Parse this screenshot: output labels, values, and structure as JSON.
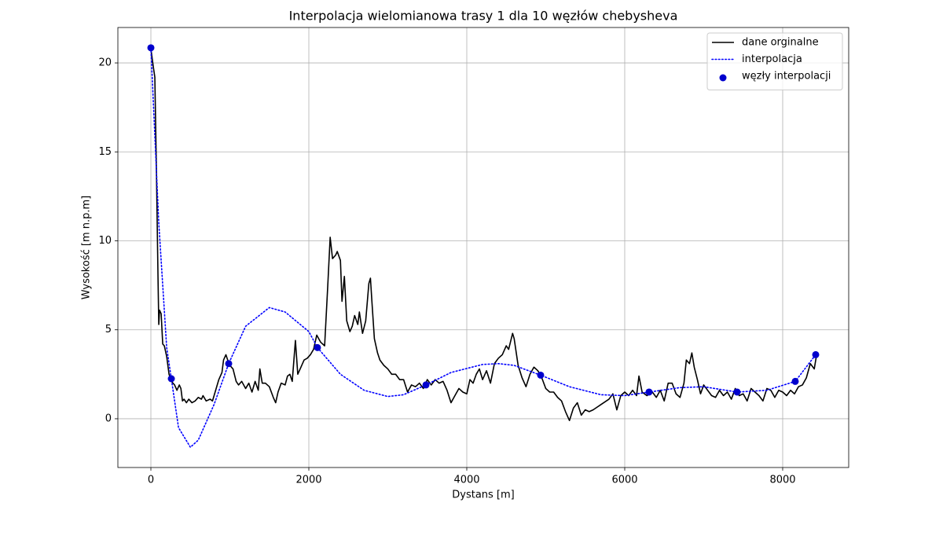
{
  "chart_data": {
    "type": "line",
    "title": "Interpolacja wielomianowa trasy 1 dla 10 węzłów chebysheva",
    "xlabel": "Dystans [m]",
    "ylabel": "Wysokość [m n.p.m]",
    "xlim": [
      -418,
      8836
    ],
    "ylim": [
      -2.74,
      21.99
    ],
    "xticks": [
      0,
      2000,
      4000,
      6000,
      8000
    ],
    "yticks": [
      0,
      5,
      10,
      15,
      20
    ],
    "grid": true,
    "legend": "upper right",
    "series": [
      {
        "name": "dane orginalne",
        "type": "line",
        "style": "solid",
        "color": "#000000",
        "x": [
          0,
          30,
          50,
          70,
          90,
          100,
          110,
          130,
          150,
          170,
          200,
          230,
          260,
          300,
          330,
          360,
          380,
          400,
          420,
          450,
          480,
          520,
          560,
          600,
          640,
          660,
          700,
          750,
          780,
          820,
          860,
          900,
          920,
          950,
          980,
          1000,
          1040,
          1080,
          1110,
          1150,
          1200,
          1240,
          1280,
          1320,
          1360,
          1380,
          1410,
          1450,
          1500,
          1550,
          1580,
          1610,
          1650,
          1700,
          1730,
          1760,
          1790,
          1830,
          1860,
          1900,
          1940,
          1980,
          2020,
          2060,
          2100,
          2150,
          2200,
          2240,
          2270,
          2300,
          2340,
          2360,
          2400,
          2420,
          2450,
          2480,
          2520,
          2550,
          2580,
          2620,
          2640,
          2680,
          2720,
          2760,
          2780,
          2800,
          2830,
          2870,
          2900,
          2950,
          3000,
          3050,
          3100,
          3150,
          3200,
          3250,
          3300,
          3350,
          3400,
          3450,
          3500,
          3550,
          3600,
          3650,
          3700,
          3750,
          3800,
          3850,
          3900,
          3950,
          4000,
          4040,
          4080,
          4120,
          4160,
          4200,
          4250,
          4300,
          4350,
          4400,
          4450,
          4500,
          4530,
          4580,
          4600,
          4650,
          4700,
          4750,
          4800,
          4850,
          4900,
          4950,
          5000,
          5050,
          5100,
          5150,
          5200,
          5250,
          5300,
          5350,
          5400,
          5450,
          5500,
          5550,
          5600,
          5700,
          5800,
          5850,
          5900,
          5950,
          6000,
          6050,
          6100,
          6150,
          6180,
          6220,
          6280,
          6350,
          6400,
          6450,
          6500,
          6550,
          6600,
          6650,
          6700,
          6750,
          6780,
          6820,
          6850,
          6880,
          6920,
          6960,
          7000,
          7050,
          7100,
          7150,
          7200,
          7250,
          7300,
          7350,
          7400,
          7450,
          7500,
          7550,
          7600,
          7650,
          7700,
          7750,
          7800,
          7850,
          7900,
          7950,
          8000,
          8050,
          8100,
          8150,
          8200,
          8250,
          8300,
          8350,
          8400,
          8430
        ],
        "values": [
          20.8,
          19.8,
          19.2,
          14,
          8,
          5.3,
          6.1,
          5.9,
          4.2,
          4.1,
          3.5,
          2.5,
          2.1,
          1.9,
          1.6,
          1.9,
          1.7,
          1.0,
          1.1,
          0.9,
          1.1,
          0.9,
          1.0,
          1.2,
          1.1,
          1.3,
          1.0,
          1.1,
          1.0,
          1.6,
          2.2,
          2.6,
          3.3,
          3.6,
          3.2,
          3.0,
          2.8,
          2.1,
          1.9,
          2.1,
          1.7,
          2.0,
          1.5,
          2.1,
          1.6,
          2.8,
          2.0,
          2.0,
          1.8,
          1.2,
          0.9,
          1.5,
          2.0,
          1.9,
          2.4,
          2.5,
          2.1,
          4.4,
          2.5,
          2.9,
          3.3,
          3.4,
          3.6,
          3.9,
          4.7,
          4.3,
          4.1,
          7.5,
          10.2,
          9.0,
          9.2,
          9.4,
          8.9,
          6.6,
          8.0,
          5.5,
          4.9,
          5.2,
          5.8,
          5.3,
          6.0,
          4.8,
          5.5,
          7.6,
          7.9,
          6.5,
          4.5,
          3.7,
          3.3,
          3.0,
          2.8,
          2.5,
          2.5,
          2.2,
          2.2,
          1.5,
          1.9,
          1.8,
          2.0,
          1.7,
          2.2,
          1.9,
          2.2,
          2.0,
          2.1,
          1.6,
          0.9,
          1.3,
          1.7,
          1.5,
          1.4,
          2.2,
          2.0,
          2.5,
          2.8,
          2.2,
          2.7,
          2.0,
          3.1,
          3.4,
          3.6,
          4.1,
          3.9,
          4.8,
          4.5,
          3.0,
          2.3,
          1.8,
          2.5,
          2.9,
          2.7,
          2.3,
          1.7,
          1.5,
          1.5,
          1.2,
          1.0,
          0.4,
          -0.1,
          0.6,
          0.9,
          0.2,
          0.5,
          0.4,
          0.5,
          0.8,
          1.1,
          1.4,
          0.5,
          1.3,
          1.5,
          1.3,
          1.6,
          1.3,
          2.4,
          1.5,
          1.3,
          1.5,
          1.2,
          1.6,
          1.0,
          2.0,
          2.0,
          1.4,
          1.2,
          2.0,
          3.3,
          3.1,
          3.7,
          2.9,
          2.2,
          1.4,
          1.9,
          1.6,
          1.3,
          1.2,
          1.6,
          1.3,
          1.5,
          1.1,
          1.7,
          1.3,
          1.4,
          1.0,
          1.7,
          1.5,
          1.3,
          1.0,
          1.7,
          1.6,
          1.2,
          1.6,
          1.5,
          1.3,
          1.6,
          1.4,
          1.8,
          1.9,
          2.3,
          3.1,
          2.8,
          3.6
        ]
      },
      {
        "name": "interpolacja",
        "type": "line",
        "style": "dotted",
        "color": "#0000ff",
        "x": [
          0,
          100,
          200,
          259,
          350,
          500,
          600,
          800,
          985,
          1200,
          1500,
          1700,
          2000,
          2109,
          2400,
          2700,
          3000,
          3200,
          3483,
          3800,
          4200,
          4400,
          4600,
          4935,
          5300,
          5700,
          6000,
          6308,
          6700,
          7000,
          7423,
          7800,
          8159,
          8418
        ],
        "values": [
          20.85,
          11,
          4,
          2.25,
          -0.5,
          -1.6,
          -1.2,
          0.8,
          3.1,
          5.2,
          6.25,
          6.0,
          4.9,
          4.0,
          2.5,
          1.6,
          1.25,
          1.35,
          1.9,
          2.6,
          3.05,
          3.1,
          3.0,
          2.45,
          1.8,
          1.35,
          1.3,
          1.5,
          1.75,
          1.8,
          1.5,
          1.6,
          2.1,
          3.6
        ]
      },
      {
        "name": "węzły interpolacji",
        "type": "scatter",
        "color": "#0000cd",
        "x": [
          0,
          259,
          985,
          2109,
          3483,
          4935,
          6308,
          7423,
          8159,
          8418
        ],
        "values": [
          20.85,
          2.25,
          3.1,
          4.0,
          1.9,
          2.45,
          1.5,
          1.5,
          2.1,
          3.6
        ]
      }
    ]
  }
}
